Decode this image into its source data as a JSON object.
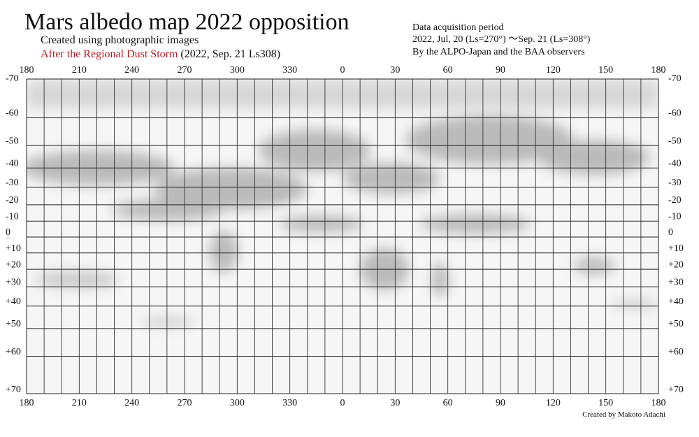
{
  "header": {
    "title": "Mars albedo map 2022 opposition",
    "subtitle": "Created using photographic images",
    "storm_note": "After the Regional Dust Storm",
    "storm_date": "(2022, Sep. 21 Ls308)"
  },
  "period": {
    "heading": "Data acquisition period",
    "range": "2022, Jul, 20 (Ls=270°) ～Sep. 21 (Ls=308°)",
    "observers": "By the ALPO-Japan and the BAA observers"
  },
  "map": {
    "longitude_labels": [
      180,
      210,
      240,
      270,
      300,
      330,
      0,
      30,
      60,
      90,
      120,
      150,
      180
    ],
    "latitude_labels": [
      -70,
      -60,
      -50,
      -40,
      -30,
      -20,
      -10,
      0,
      {
        "value": 10,
        "label": "+10"
      },
      {
        "value": 20,
        "label": "+20"
      },
      {
        "value": 30,
        "label": "+30"
      },
      {
        "value": 40,
        "label": "+40"
      },
      {
        "value": 50,
        "label": "+50"
      },
      {
        "value": 60,
        "label": "+60"
      },
      {
        "value": 70,
        "label": "+70"
      }
    ]
  },
  "footer": {
    "credit": "Created by Makoto Adachi"
  }
}
